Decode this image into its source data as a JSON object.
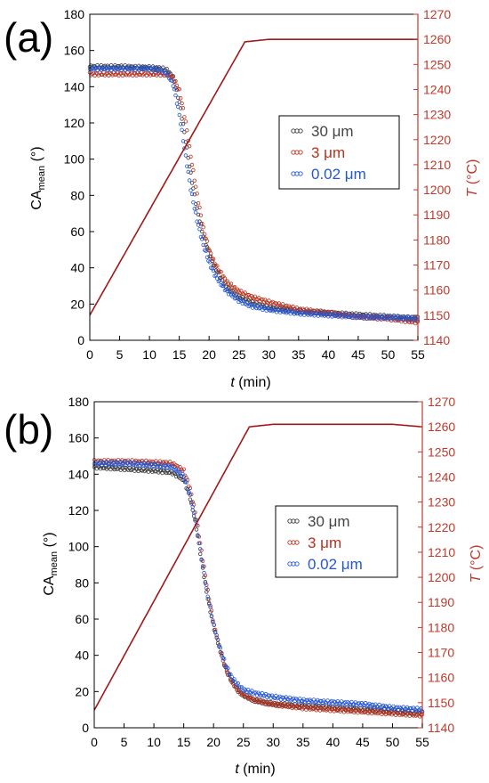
{
  "colors": {
    "series_30um": "#3a3a3a",
    "series_3um": "#b8321e",
    "series_002um": "#2456d6",
    "temperature_line": "#a01818",
    "right_axis": "#c0392b",
    "left_axis": "#000000"
  },
  "chart_data": [
    {
      "panel_label": "(a)",
      "type": "scatter",
      "xlabel_italic": "t",
      "xlabel_rest": " (min)",
      "ylabel_main": "CA",
      "ylabel_sub": "mean",
      "ylabel_unit": " (°)",
      "y2label_italic": "T",
      "y2label_rest": " (°C)",
      "xlim": [
        0,
        55
      ],
      "ylim": [
        0,
        180
      ],
      "y2lim": [
        1140,
        1270
      ],
      "x_ticks": [
        "0",
        "5",
        "10",
        "15",
        "20",
        "25",
        "30",
        "35",
        "40",
        "45",
        "50",
        "55"
      ],
      "y_ticks": [
        "0",
        "20",
        "40",
        "60",
        "80",
        "100",
        "120",
        "140",
        "160",
        "180"
      ],
      "y2_ticks": [
        "1140",
        "1150",
        "1160",
        "1170",
        "1180",
        "1190",
        "1200",
        "1210",
        "1220",
        "1230",
        "1240",
        "1250",
        "1260",
        "1270"
      ],
      "legend_position": "center-right",
      "series": [
        {
          "name": "30 μm",
          "x": [
            0,
            5,
            10,
            12,
            13,
            14,
            15,
            16,
            17,
            18,
            19,
            20,
            21,
            22,
            23,
            25,
            27,
            30,
            35,
            40,
            45,
            50,
            55
          ],
          "y": [
            151,
            151,
            150.5,
            150,
            149,
            145,
            132,
            112,
            90,
            72,
            58,
            48,
            40,
            34,
            29,
            24,
            21,
            18,
            16,
            15,
            14,
            13,
            12
          ]
        },
        {
          "name": "3 μm",
          "x": [
            0,
            5,
            10,
            12,
            13,
            14,
            15,
            16,
            17,
            18,
            19,
            20,
            21,
            22,
            23,
            25,
            27,
            30,
            35,
            40,
            45,
            50,
            55
          ],
          "y": [
            147,
            147,
            147,
            147,
            146.5,
            145,
            138,
            122,
            100,
            80,
            62,
            50,
            42,
            37,
            32,
            27,
            24,
            21,
            17,
            15,
            13,
            12,
            10
          ]
        },
        {
          "name": "0.02 μm",
          "x": [
            0,
            5,
            10,
            12,
            13,
            14,
            15,
            16,
            17,
            18,
            19,
            20,
            21,
            22,
            23,
            25,
            27,
            30,
            35,
            40,
            45,
            50,
            55
          ],
          "y": [
            150,
            150,
            150,
            149,
            147,
            141,
            125,
            103,
            82,
            66,
            53,
            43,
            36,
            31,
            27,
            22,
            19,
            17,
            15,
            14,
            13,
            12.5,
            12
          ]
        }
      ],
      "temperature": {
        "x": [
          0,
          26,
          30,
          40,
          50,
          55
        ],
        "y": [
          1150,
          1259,
          1260,
          1260,
          1260,
          1260
        ]
      }
    },
    {
      "panel_label": "(b)",
      "type": "scatter",
      "xlabel_italic": "t",
      "xlabel_rest": " (min)",
      "ylabel_main": "CA",
      "ylabel_sub": "mean",
      "ylabel_unit": " (°)",
      "y2label_italic": "T",
      "y2label_rest": " (°C)",
      "xlim": [
        0,
        55
      ],
      "ylim": [
        0,
        180
      ],
      "y2lim": [
        1140,
        1270
      ],
      "x_ticks": [
        "0",
        "5",
        "10",
        "15",
        "20",
        "25",
        "30",
        "35",
        "40",
        "45",
        "50",
        "55"
      ],
      "y_ticks": [
        "0",
        "20",
        "40",
        "60",
        "80",
        "100",
        "120",
        "140",
        "160",
        "180"
      ],
      "y2_ticks": [
        "1140",
        "1150",
        "1160",
        "1170",
        "1180",
        "1190",
        "1200",
        "1210",
        "1220",
        "1230",
        "1240",
        "1250",
        "1260",
        "1270"
      ],
      "legend_position": "center-right",
      "series": [
        {
          "name": "30 μm",
          "x": [
            0,
            5,
            10,
            13,
            15,
            16,
            17,
            18,
            19,
            20,
            21,
            22,
            23,
            24,
            25,
            27,
            30,
            35,
            40,
            45,
            50,
            55
          ],
          "y": [
            144,
            143,
            142,
            141,
            137,
            128,
            113,
            92,
            72,
            56,
            44,
            33,
            26,
            21,
            18,
            15,
            13,
            12,
            11,
            10,
            9,
            8
          ]
        },
        {
          "name": "3 μm",
          "x": [
            0,
            5,
            10,
            13,
            15,
            16,
            17,
            18,
            19,
            20,
            21,
            22,
            23,
            24,
            25,
            27,
            30,
            35,
            40,
            45,
            50,
            55
          ],
          "y": [
            147,
            147,
            146.5,
            146,
            142,
            133,
            118,
            97,
            76,
            58,
            44,
            33,
            26,
            21,
            18,
            15,
            13,
            11,
            10,
            9,
            8,
            7
          ]
        },
        {
          "name": "0.02 μm",
          "x": [
            0,
            5,
            10,
            13,
            15,
            16,
            17,
            18,
            19,
            20,
            21,
            22,
            23,
            24,
            25,
            27,
            30,
            35,
            40,
            45,
            50,
            55
          ],
          "y": [
            146,
            146,
            145,
            144,
            139,
            129,
            114,
            93,
            73,
            57,
            45,
            35,
            28,
            24,
            21,
            19,
            17,
            15,
            14,
            13,
            11,
            10
          ]
        }
      ],
      "temperature": {
        "x": [
          0,
          26,
          30,
          40,
          50,
          55
        ],
        "y": [
          1147,
          1260,
          1261,
          1261,
          1261,
          1260
        ]
      }
    }
  ]
}
